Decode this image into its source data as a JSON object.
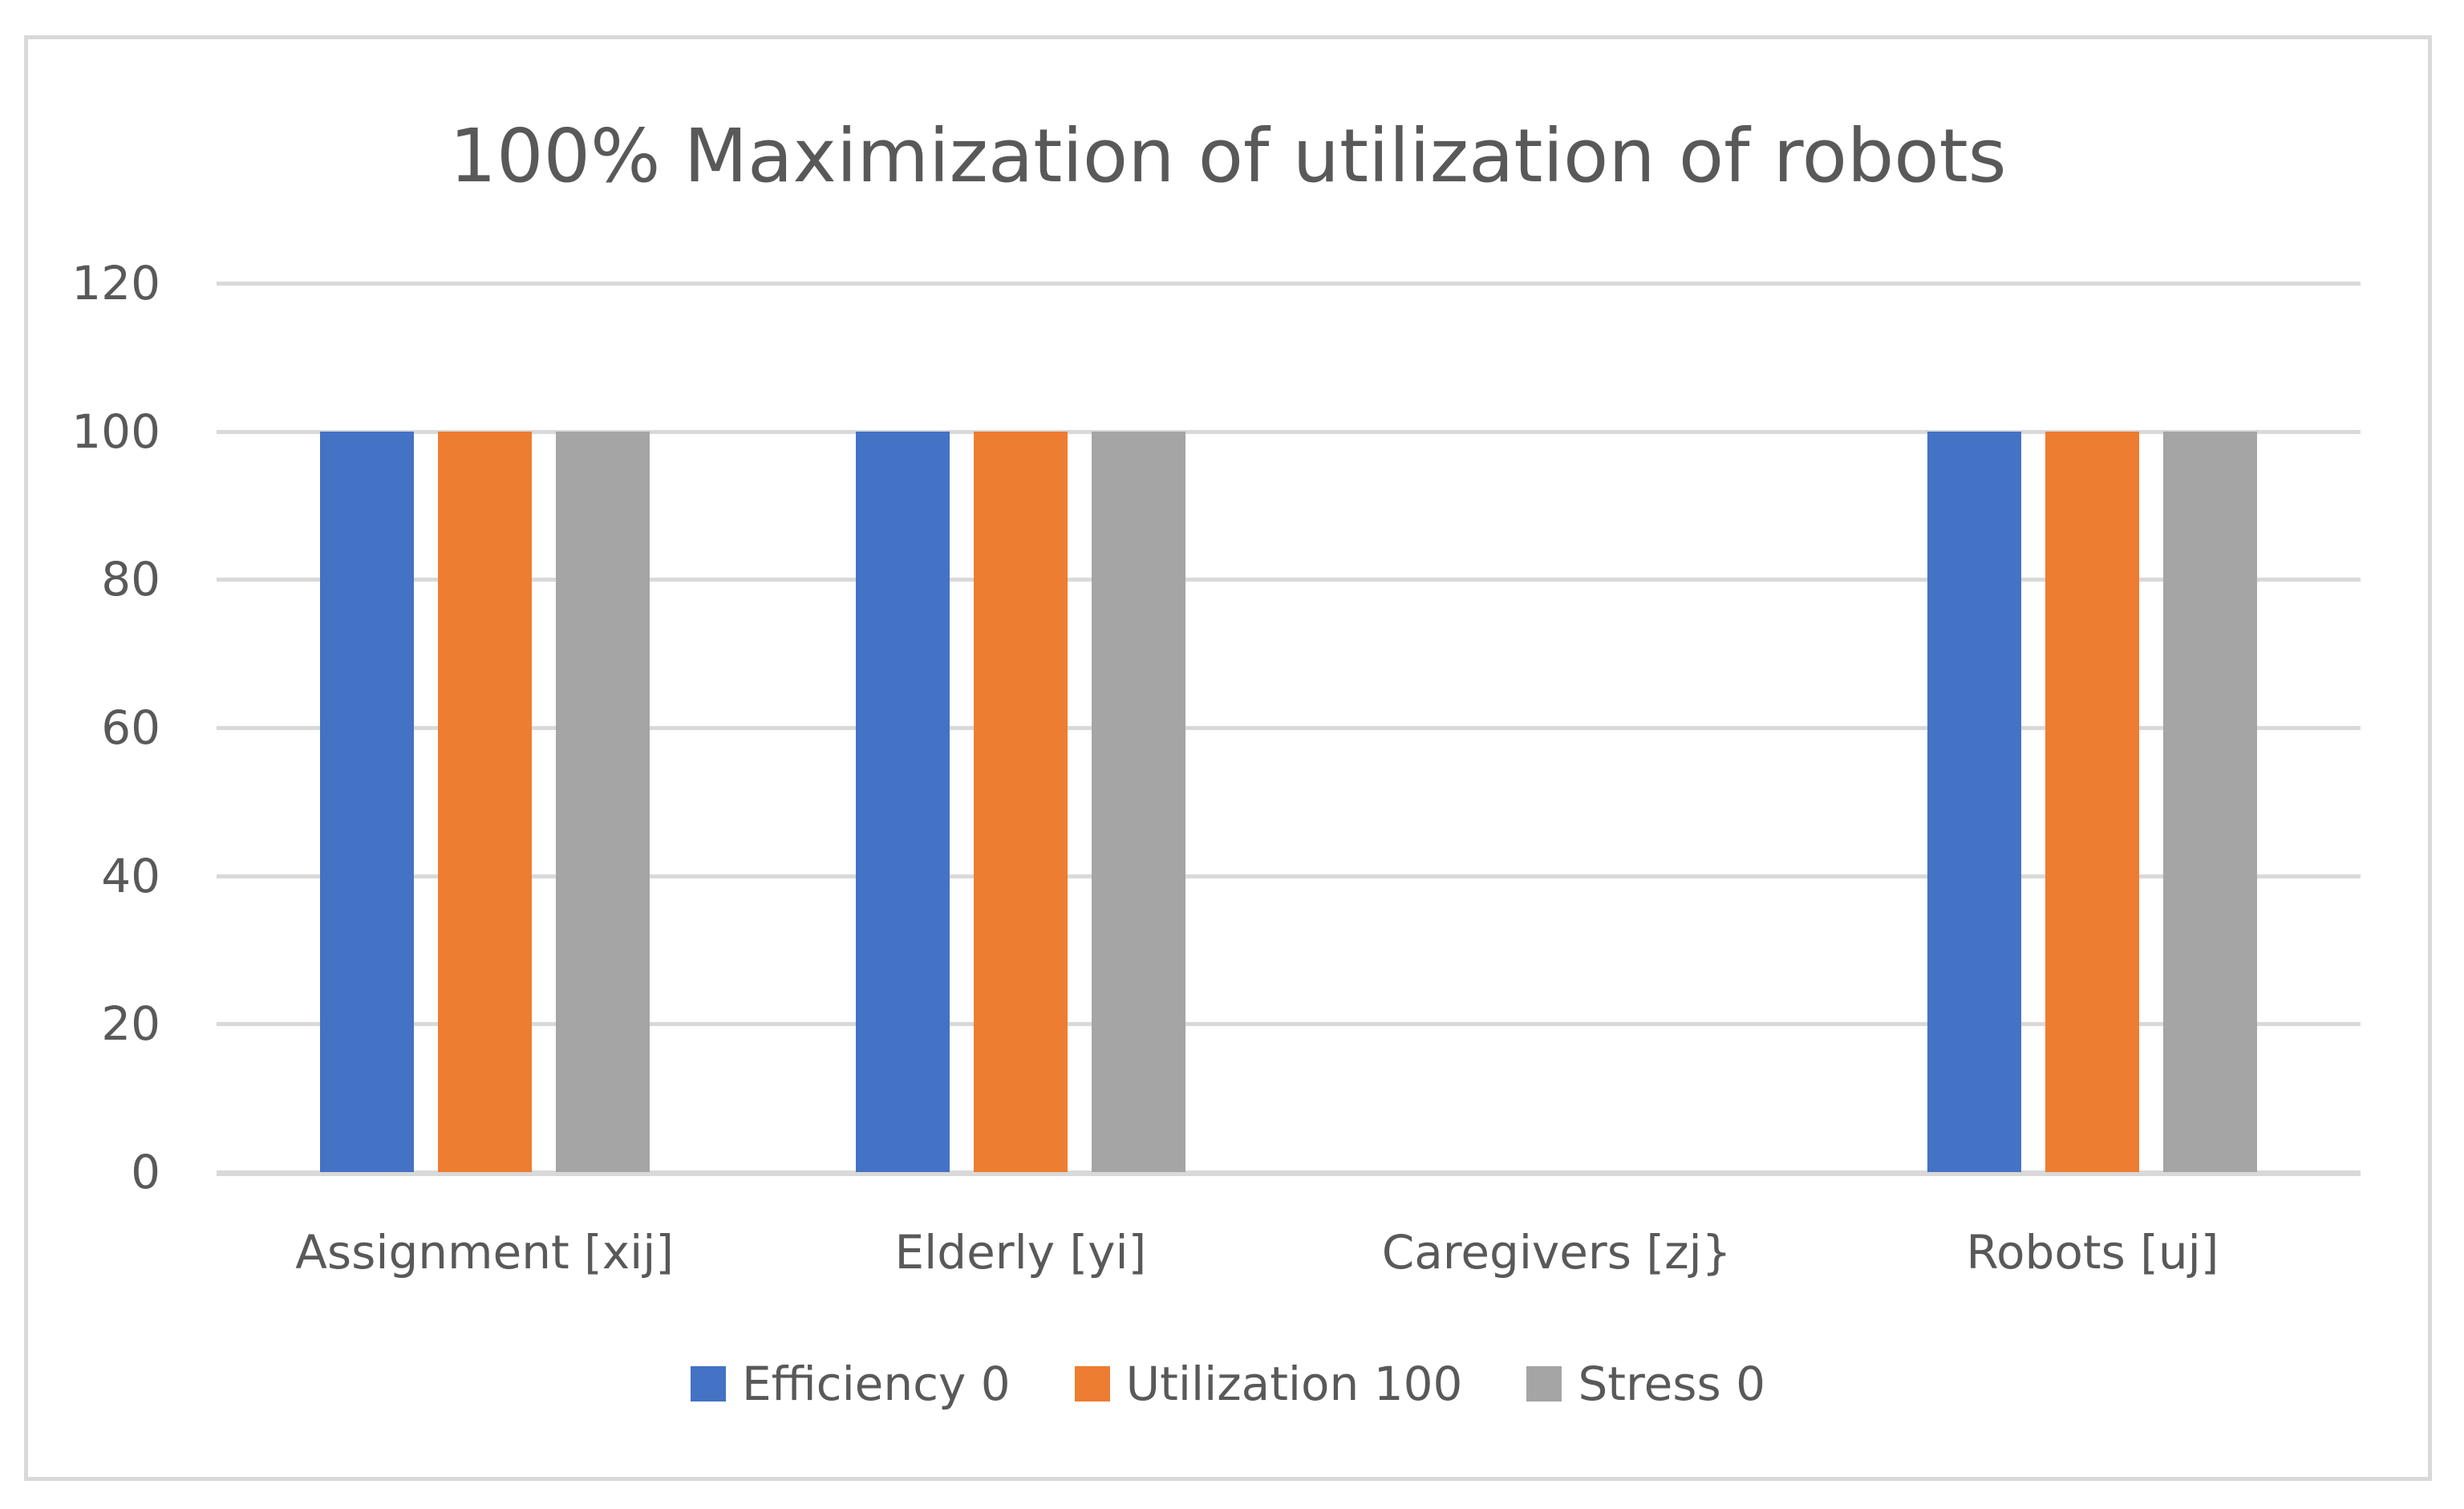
{
  "chart_data": {
    "type": "bar",
    "title": "100% Maximization of utilization of robots",
    "categories": [
      "Assignment [xij]",
      "Elderly [yi]",
      "Caregivers [zj}",
      "Robots [uj]"
    ],
    "series": [
      {
        "name": "Efficiency 0",
        "color": "#4472C4",
        "values": [
          100,
          100,
          0,
          100
        ]
      },
      {
        "name": "Utilization 100",
        "color": "#ED7D31",
        "values": [
          100,
          100,
          0,
          100
        ]
      },
      {
        "name": "Stress 0",
        "color": "#A5A5A5",
        "values": [
          100,
          100,
          0,
          100
        ]
      }
    ],
    "ylim": [
      0,
      120
    ],
    "yticks": [
      0,
      20,
      40,
      60,
      80,
      100,
      120
    ],
    "grid": true,
    "legend_position": "bottom"
  },
  "style": {
    "text_color": "#595959",
    "gridline_color": "#D9D9D9",
    "border_color": "#D9D9D9",
    "background": "#FFFFFF"
  }
}
